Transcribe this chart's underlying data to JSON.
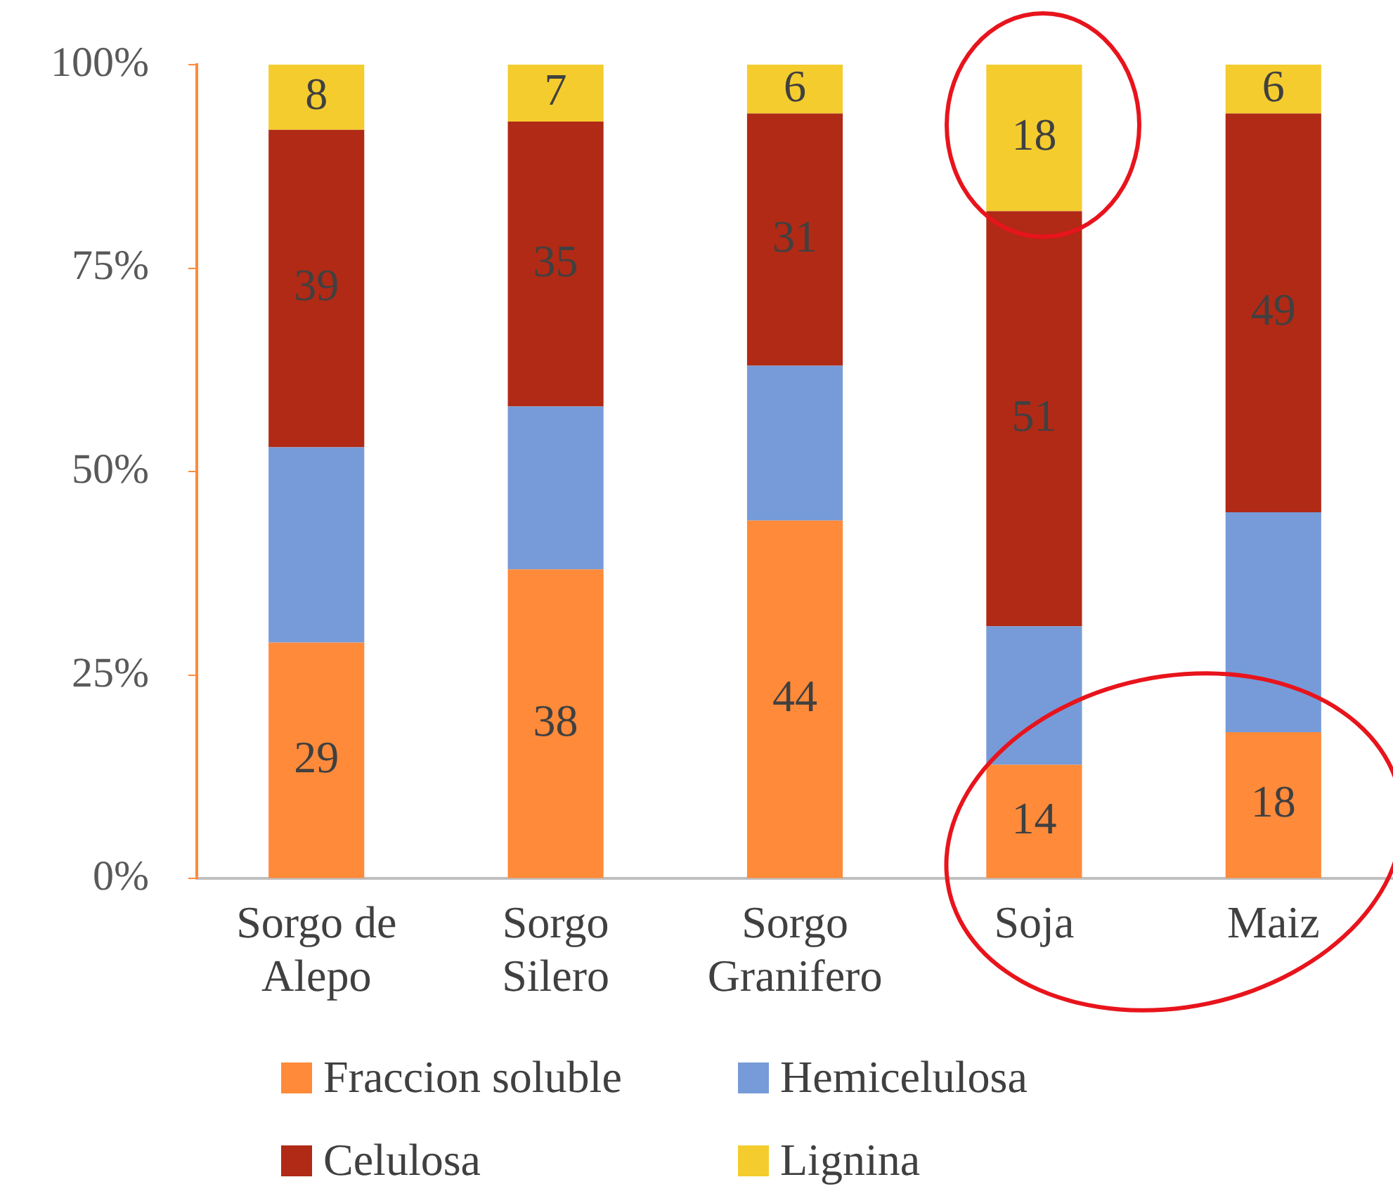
{
  "chart_data": {
    "type": "bar",
    "stacked": true,
    "categories": [
      "Sorgo de Alepo",
      "Sorgo Silero",
      "Sorgo Granifero",
      "Soja",
      "Maiz"
    ],
    "series": [
      {
        "name": "Fraccion soluble",
        "color": "#ff8a3a",
        "values": [
          29,
          38,
          44,
          14,
          18
        ],
        "value_labels": [
          "29",
          "38",
          "44",
          "14",
          "18"
        ]
      },
      {
        "name": "Hemicelulosa",
        "color": "#779bd8",
        "values": [
          24,
          20,
          19,
          17,
          27
        ],
        "value_labels": [
          null,
          null,
          null,
          null,
          null
        ]
      },
      {
        "name": "Celulosa",
        "color": "#b02a16",
        "values": [
          39,
          35,
          31,
          51,
          49
        ],
        "value_labels": [
          "39",
          "35",
          "31",
          "51",
          "49"
        ]
      },
      {
        "name": "Lignina",
        "color": "#f4cc2e",
        "values": [
          8,
          7,
          6,
          18,
          6
        ],
        "value_labels": [
          "8",
          "7",
          "6",
          "18",
          "6"
        ]
      }
    ],
    "ylim": [
      0,
      100
    ],
    "yticks": [
      {
        "value": 0,
        "label": "0%"
      },
      {
        "value": 25,
        "label": "25%"
      },
      {
        "value": 50,
        "label": "50%"
      },
      {
        "value": 75,
        "label": "75%"
      },
      {
        "value": 100,
        "label": "100%"
      }
    ],
    "grid": false,
    "legend": "bottom"
  }
}
